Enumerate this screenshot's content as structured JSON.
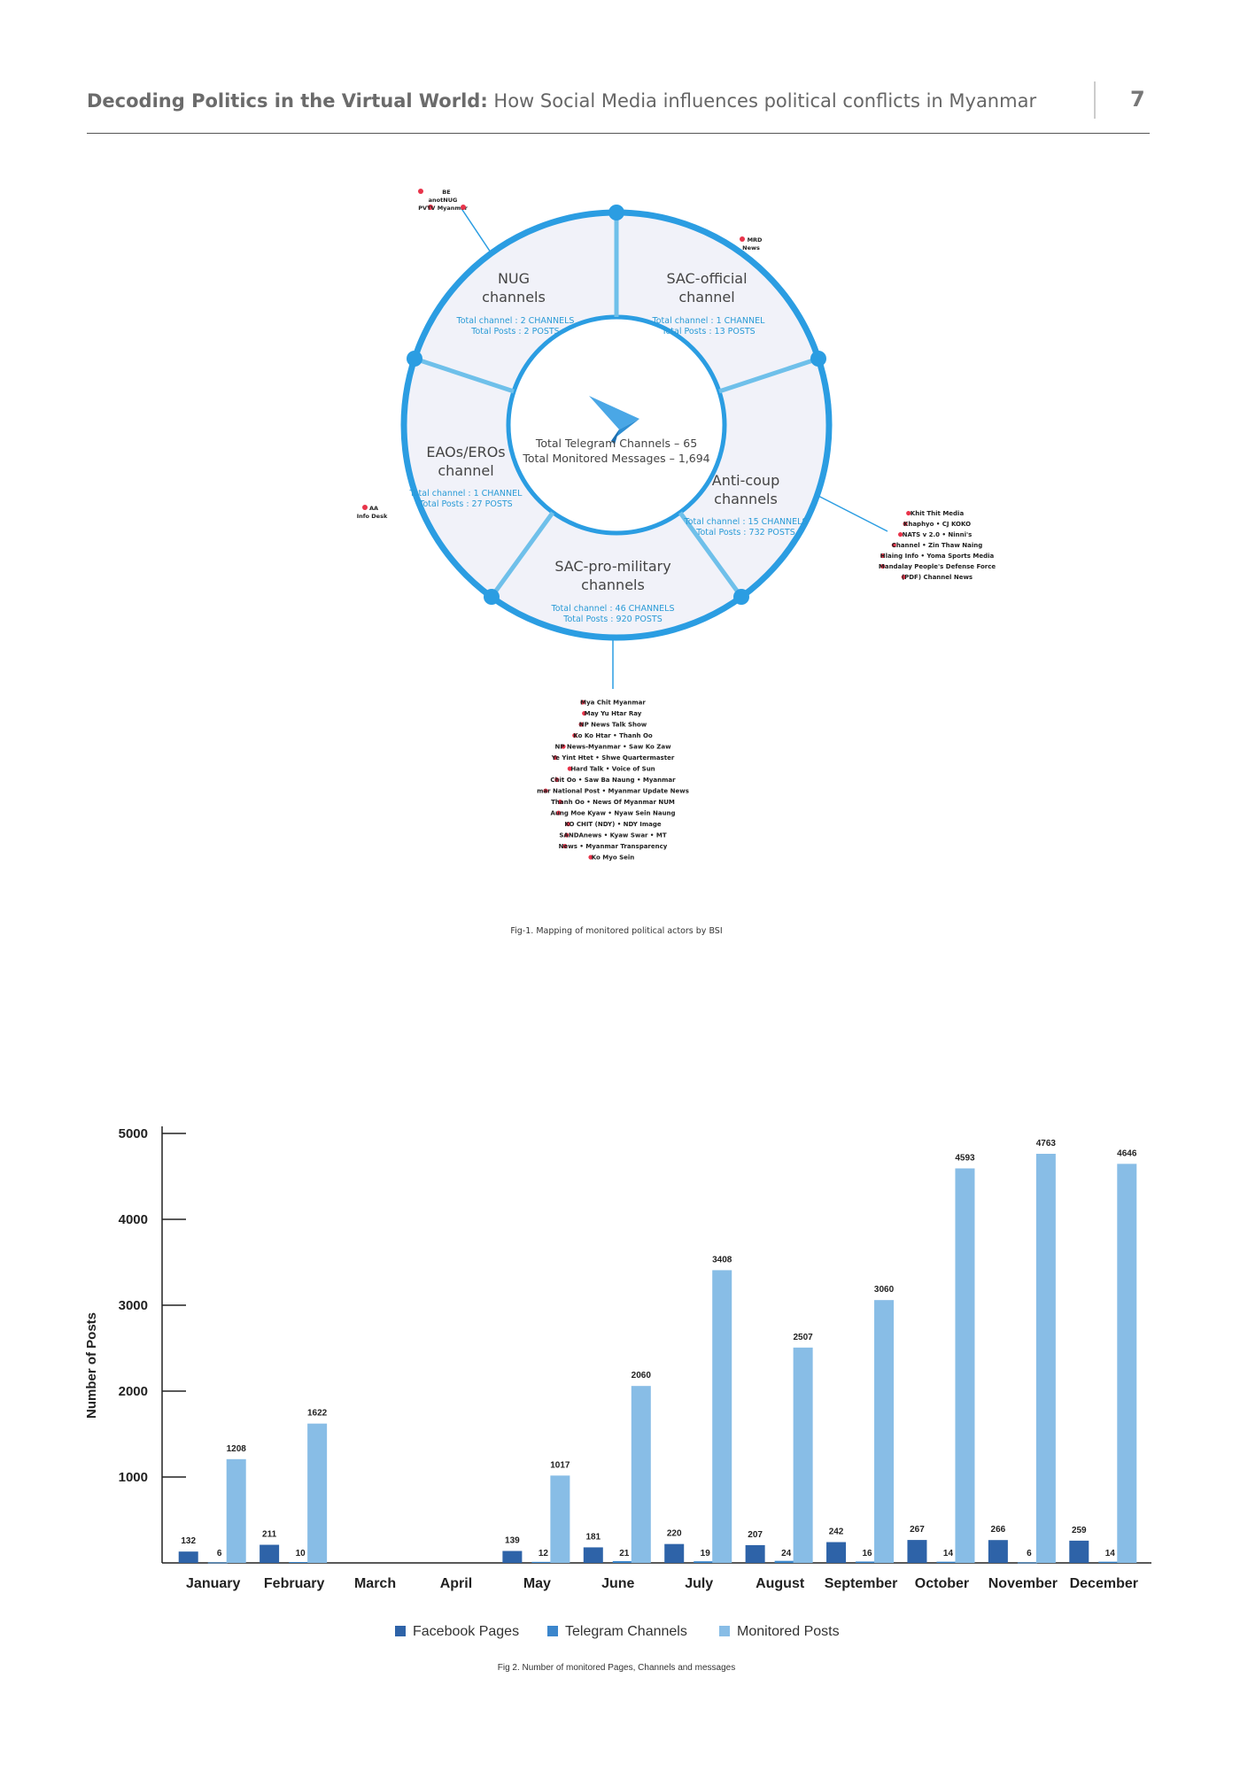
{
  "header": {
    "title_bold": "Decoding Politics in the Virtual World:",
    "title_rest": " How Social Media influences political conflicts in Myanmar",
    "page_number": "7"
  },
  "fig1": {
    "caption": "Fig-1. Mapping of monitored political actors by BSI",
    "center": {
      "line1": "Total Telegram Channels – 65",
      "line2": "Total Monitored Messages – 1,694"
    },
    "segments": {
      "nug": {
        "title1": "NUG",
        "title2": "channels",
        "stat1": "Total channel : 2 CHANNELS",
        "stat2": "Total Posts : 2 POSTS"
      },
      "sac_official": {
        "title1": "SAC-official",
        "title2": "channel",
        "stat1": "Total channel : 1 CHANNEL",
        "stat2": "Total Posts : 13 POSTS"
      },
      "anti_coup": {
        "title1": "Anti-coup",
        "title2": "channels",
        "stat1": "Total channel : 15 CHANNELS",
        "stat2": "Total Posts : 732 POSTS"
      },
      "sac_pro_military": {
        "title1": "SAC-pro-military",
        "title2": "channels",
        "stat1": "Total channel : 46 CHANNELS",
        "stat2": "Total Posts : 920 POSTS"
      },
      "eaos": {
        "title1": "EAOs/EROs",
        "title2": "channel",
        "stat1": "Total channel : 1 CHANNEL",
        "stat2": "Total Posts : 27 POSTS"
      }
    },
    "actors": {
      "nug": {
        "l1": "BE",
        "l2": "anotNUG",
        "l3": "PVTV Myanmar"
      },
      "sac_official": {
        "l1": "MRD",
        "l2": "News"
      },
      "eaos": {
        "l1": "AA",
        "l2": "Info Desk"
      },
      "anti_coup": [
        "Khit Thit Media",
        "Khaphyo • CJ KOKO",
        "NATS v 2.0 • Ninni's",
        "Channel • Zin Thaw Naing",
        "Hlaing Info • Yoma Sports Media",
        "Mandalay People's Defense Force",
        "(PDF) Channel News"
      ],
      "sac_pro_military": [
        "Mya Chit Myanmar",
        "May Yu Htar Ray",
        "NP News Talk Show",
        "Ko Ko Htar • Thanh Oo",
        "NP News-Myanmar • Saw Ko Zaw",
        "Ye Yint Htet • Shwe Quartermaster",
        "Hard Talk • Voice of Sun",
        "Chit Oo • Saw Ba Naung • Myanmar",
        "mar National Post • Myanmar Update News",
        "Thanh Oo • News Of Myanmar NUM",
        "Aung Moe Kyaw • Nyaw Sein Naung",
        "KO CHIT (NDY) • NDY Image",
        "SANDAnews • Kyaw Swar • MT",
        "News • Myanmar Transparency",
        "Ko Myo Sein"
      ]
    }
  },
  "fig2": {
    "caption": "Fig 2. Number of monitored Pages, Channels and messages",
    "legend": {
      "facebook": "Facebook Pages",
      "telegram": "Telegram Channels",
      "posts": "Monitored Posts"
    }
  },
  "chart_data": {
    "type": "bar",
    "title": "",
    "xlabel": "",
    "ylabel": "Number of Posts",
    "ylim": [
      0,
      5000
    ],
    "yticks": [
      1000,
      2000,
      3000,
      4000,
      5000
    ],
    "categories": [
      "January",
      "February",
      "March",
      "April",
      "May",
      "June",
      "July",
      "August",
      "September",
      "October",
      "November",
      "December"
    ],
    "series": [
      {
        "name": "Facebook Pages",
        "color": "#2e63a8",
        "values": [
          132,
          211,
          null,
          null,
          139,
          181,
          220,
          207,
          242,
          267,
          266,
          259
        ]
      },
      {
        "name": "Telegram Channels",
        "color": "#3b86cc",
        "values": [
          6,
          10,
          null,
          null,
          12,
          21,
          19,
          24,
          16,
          14,
          6,
          14
        ]
      },
      {
        "name": "Monitored Posts",
        "color": "#88bde6",
        "values": [
          1208,
          1622,
          null,
          null,
          1017,
          2060,
          3408,
          2507,
          3060,
          4593,
          4763,
          4646
        ]
      }
    ],
    "grid": false,
    "legend_position": "bottom"
  }
}
